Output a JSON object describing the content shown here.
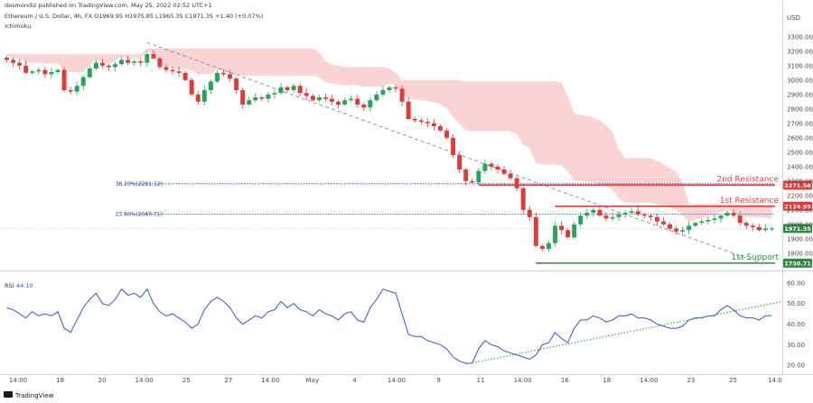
{
  "header": {
    "line1": "desmondiz published on TradingView.com, May 25, 2022 02:52 UTC+1",
    "line2": "Ethereum / U.S. Dollar, 4h, FX  O1969.95  H1975.85  L1965.35  C1971.35  +1.40 (+0.07%)",
    "line3": "Ichimoku"
  },
  "footer": {
    "brand": "TradingView"
  },
  "rsi_pane": {
    "label": "RSI",
    "value": "44.10"
  },
  "chart_data": [
    {
      "type": "candlestick",
      "title": "Ethereum / U.S. Dollar, 4h, FX",
      "currency_label": "USD",
      "y_ticks": [
        1800,
        1900,
        2000,
        2100,
        2200,
        2300,
        2400,
        2500,
        2600,
        2700,
        2800,
        2900,
        3000,
        3100,
        3200,
        3300
      ],
      "y_tick_labels": [
        "1800.00",
        "1900.00",
        "2000.00",
        "2100.00",
        "2200.00",
        "2300.00",
        "2400.00",
        "2500.00",
        "2600.00",
        "2700.00",
        "2800.00",
        "2900.00",
        "3000.00",
        "3100.00",
        "3200.00",
        "3300.00"
      ],
      "ylim": [
        1730,
        3380
      ],
      "x_tick_labels": [
        "14:00",
        "18",
        "20",
        "14:00",
        "25",
        "27",
        "14:00",
        "May",
        "4",
        "14:00",
        "9",
        "11",
        "14:00",
        "16",
        "18",
        "14:00",
        "23",
        "25",
        "14:0"
      ],
      "close_series": [
        3140,
        3120,
        3100,
        3050,
        3060,
        3070,
        3040,
        3055,
        3070,
        2930,
        2920,
        2960,
        3020,
        3080,
        3120,
        3100,
        3090,
        3110,
        3140,
        3120,
        3130,
        3120,
        3180,
        3150,
        3090,
        3070,
        3060,
        3050,
        3000,
        2900,
        2850,
        2930,
        2990,
        3050,
        3040,
        3010,
        2930,
        2830,
        2860,
        2880,
        2870,
        2900,
        2910,
        2950,
        2930,
        2960,
        2910,
        2890,
        2860,
        2880,
        2870,
        2850,
        2830,
        2860,
        2870,
        2830,
        2810,
        2860,
        2900,
        2930,
        2950,
        2940,
        2850,
        2730,
        2720,
        2710,
        2700,
        2680,
        2650,
        2600,
        2480,
        2380,
        2300,
        2290,
        2370,
        2420,
        2400,
        2380,
        2350,
        2320,
        2250,
        2100,
        2050,
        1850,
        1830,
        1870,
        1990,
        1960,
        1910,
        2000,
        2060,
        2080,
        2100,
        2060,
        2040,
        2050,
        2070,
        2080,
        2090,
        2070,
        2060,
        2050,
        2020,
        2000,
        1970,
        1950,
        1960,
        1990,
        2010,
        2020,
        2030,
        2040,
        2060,
        2080,
        2060,
        2010,
        1990,
        1980,
        1960,
        1970,
        1971
      ],
      "ichimoku_cloud": {
        "color": "#f8c6c6",
        "position": "above price"
      },
      "current_price": {
        "value": 1971.35,
        "label": "1971.35",
        "color": "#2e8b3d"
      },
      "levels": [
        {
          "name": "2nd Resistance",
          "value": 2271.56,
          "label": "2271.56",
          "color": "#e53935"
        },
        {
          "name": "1st Resistance",
          "value": 2124.95,
          "label": "2124.95",
          "color": "#e53935"
        },
        {
          "name": "1st Support",
          "value": 1730.71,
          "label": "1730.71",
          "color": "#2e8b3d"
        }
      ],
      "fibonacci": [
        {
          "label": "38.20%(2281.12)",
          "value": 2281.12,
          "color": "#1f4fa8"
        },
        {
          "label": "23.60%(2069.71)",
          "value": 2069.71,
          "color": "#1f4fa8"
        }
      ],
      "trendline": {
        "from_close_index": 22,
        "to_close_index": 118,
        "color": "#5c7fc0",
        "style": "dashed"
      },
      "colors": {
        "up": "#26a65b",
        "down": "#e53935"
      }
    },
    {
      "type": "line",
      "title": "RSI",
      "y_ticks": [
        20,
        30,
        40,
        50,
        60
      ],
      "y_tick_labels": [
        "20.00",
        "30.00",
        "40.00",
        "50.00",
        "60.00"
      ],
      "ylim": [
        17,
        63
      ],
      "series": [
        {
          "name": "RSI",
          "color": "#3358c4",
          "values": [
            48,
            47,
            45,
            43,
            46,
            44,
            45,
            44,
            46,
            38,
            36,
            42,
            48,
            52,
            55,
            50,
            49,
            52,
            57,
            54,
            55,
            53,
            57,
            50,
            46,
            44,
            45,
            43,
            41,
            38,
            40,
            47,
            51,
            53,
            51,
            48,
            43,
            40,
            42,
            44,
            43,
            46,
            47,
            51,
            48,
            50,
            47,
            46,
            44,
            47,
            45,
            44,
            42,
            45,
            46,
            42,
            41,
            48,
            52,
            57,
            56,
            55,
            45,
            35,
            34,
            34,
            32,
            31,
            30,
            28,
            24,
            22,
            21,
            21,
            28,
            32,
            30,
            29,
            27,
            26,
            25,
            24,
            23,
            25,
            30,
            31,
            36,
            33,
            31,
            38,
            42,
            42,
            44,
            43,
            41,
            42,
            44,
            44,
            45,
            43,
            43,
            42,
            40,
            39,
            38,
            38,
            39,
            42,
            43,
            43,
            44,
            44,
            47,
            49,
            47,
            44,
            43,
            43,
            42,
            44,
            44.1
          ]
        }
      ],
      "trendline": {
        "color": "#3aa845",
        "style": "dotted"
      }
    }
  ]
}
